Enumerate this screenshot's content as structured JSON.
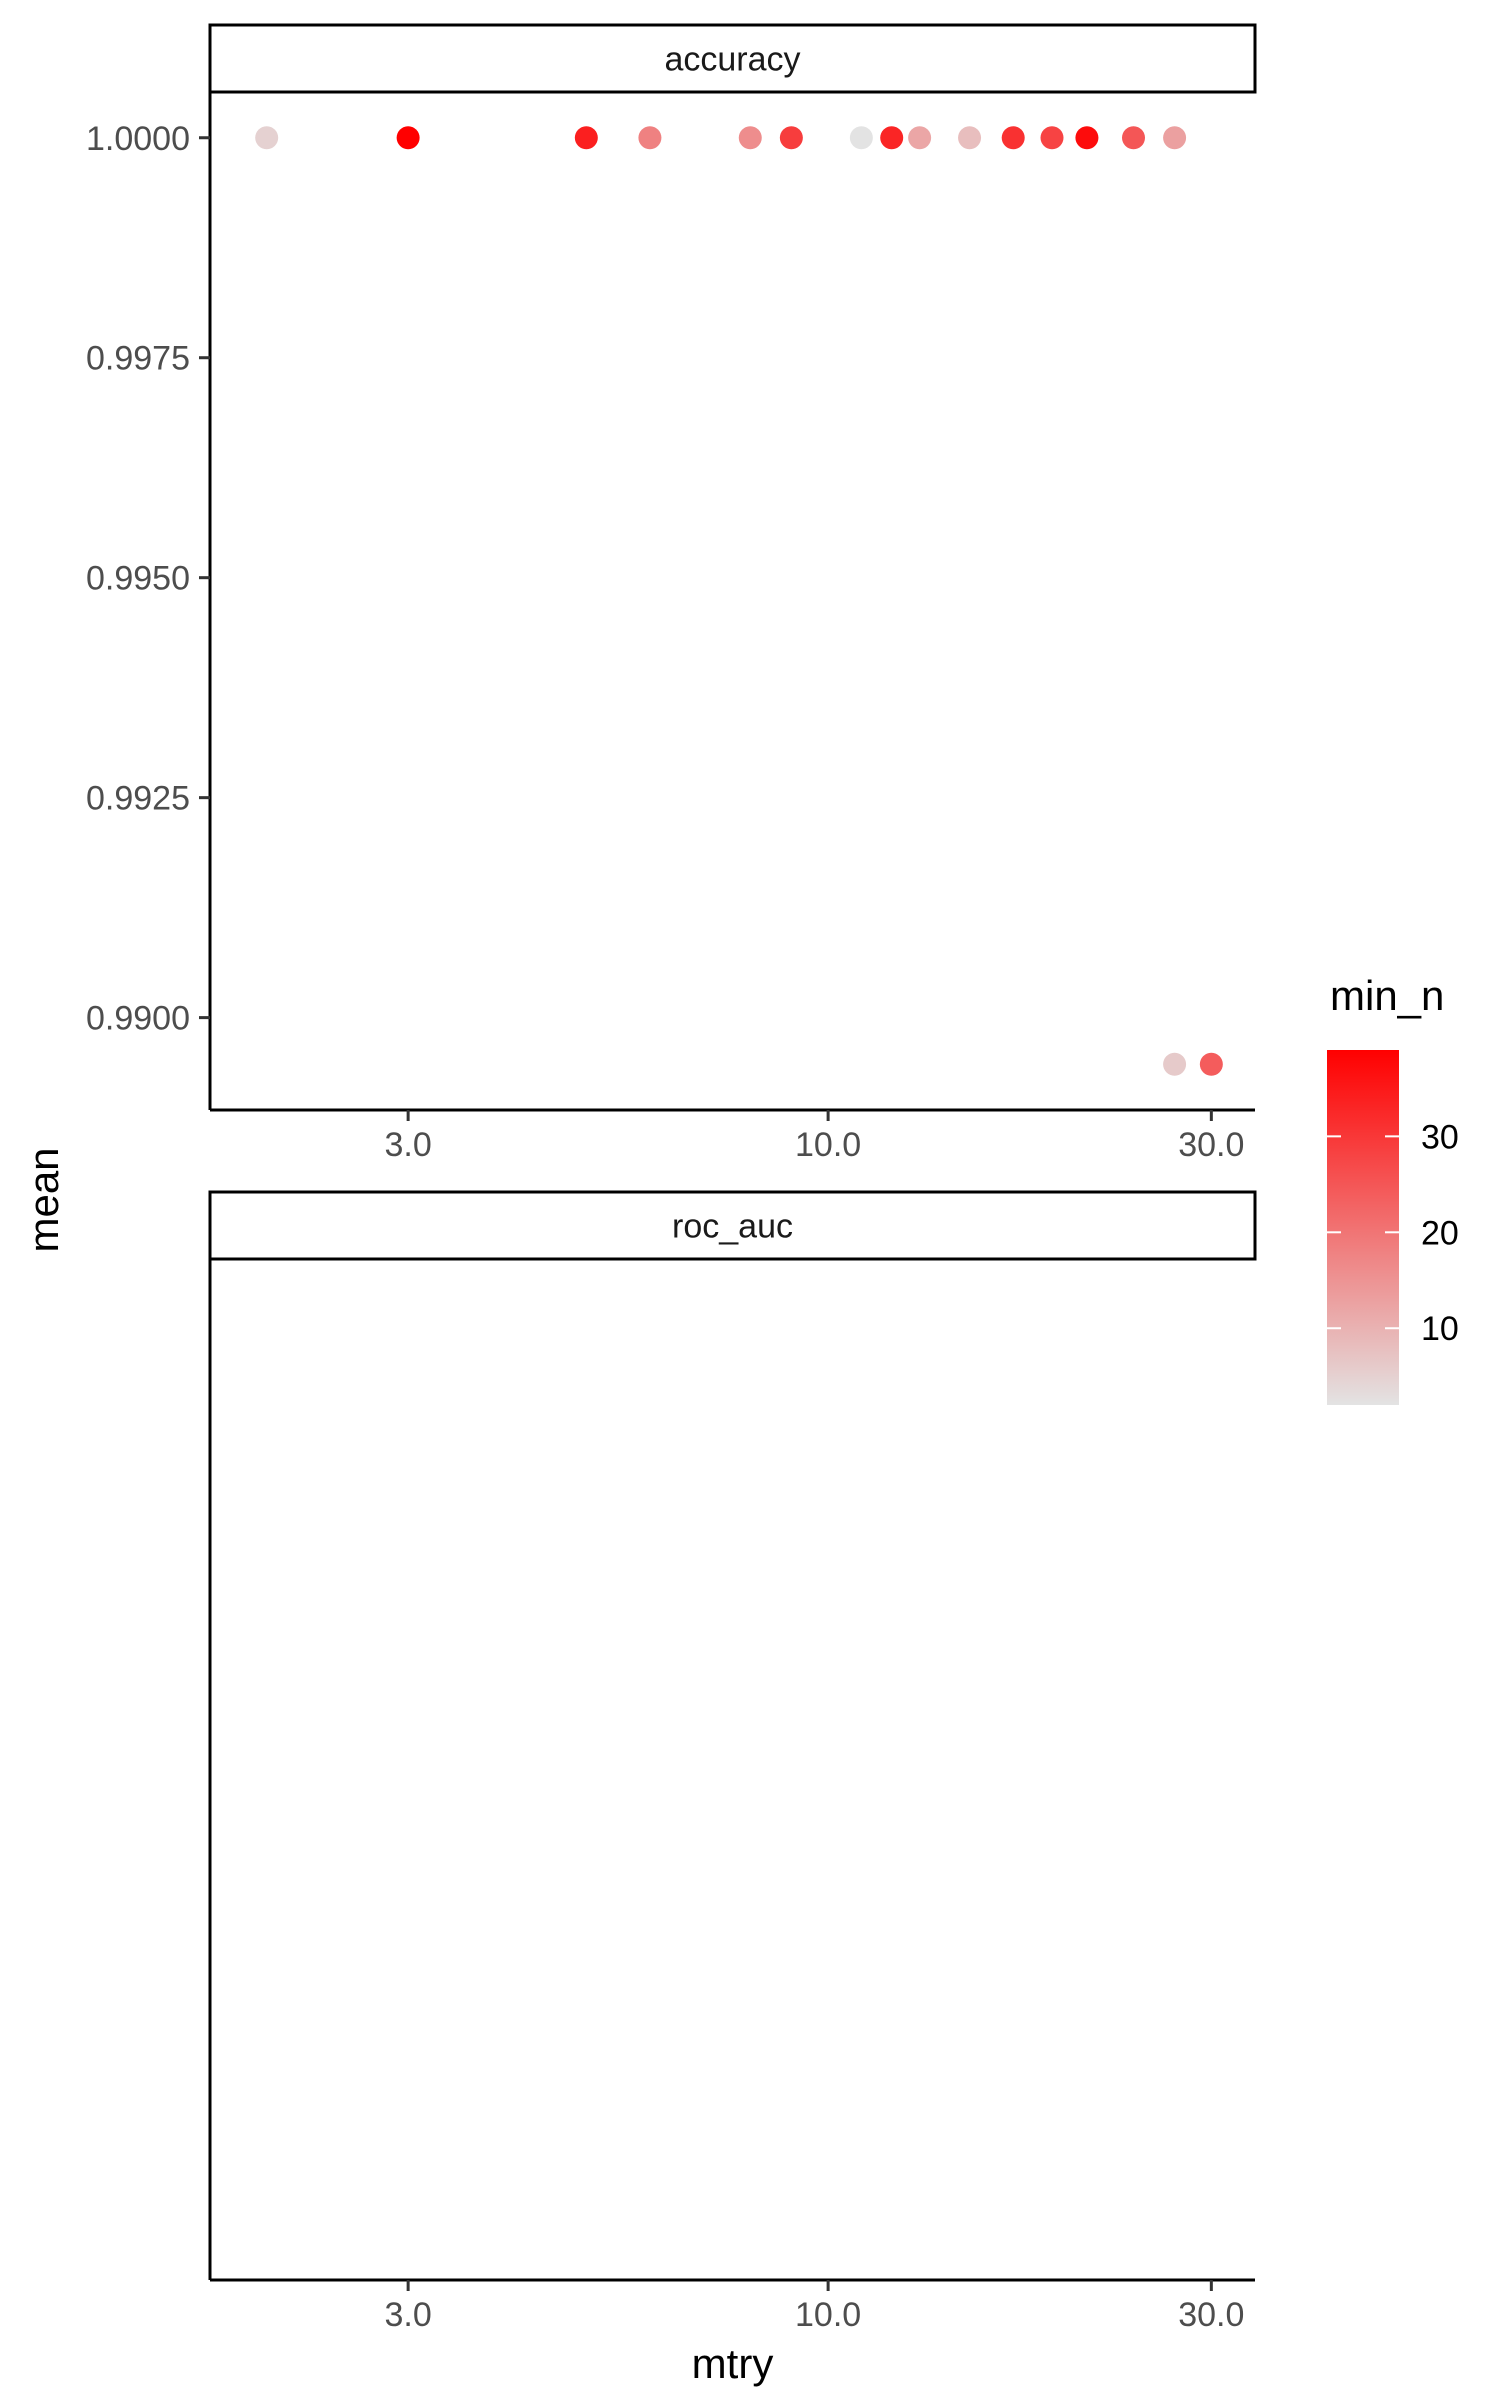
{
  "chart_data": {
    "type": "scatter",
    "xlabel": "mtry",
    "ylabel": "mean",
    "x_scale": "log10",
    "x_ticks": [
      3.0,
      10.0,
      30.0
    ],
    "x_tick_labels": [
      "3.0",
      "10.0",
      "30.0"
    ],
    "xlim": [
      1.7,
      34
    ],
    "grid": false,
    "legend": {
      "title": "min_n",
      "placement": "right",
      "type": "colorbar",
      "range": [
        2,
        39
      ],
      "ticks": [
        10,
        20,
        30
      ],
      "tick_labels": [
        "10",
        "20",
        "30"
      ],
      "colors": {
        "low": "#e3e3e3",
        "high": "#ff0000"
      }
    },
    "panels": [
      {
        "strip": "accuracy",
        "ylim": [
          0.98895,
          1.00052
        ],
        "y_ticks": [
          0.99,
          0.9925,
          0.995,
          0.9975,
          1.0
        ],
        "y_tick_labels": [
          "0.9900",
          "0.9925",
          "0.9950",
          "0.9975",
          "1.0000"
        ],
        "points": [
          {
            "mtry": 2.0,
            "mean": 1.0,
            "min_n": 5
          },
          {
            "mtry": 3.0,
            "mean": 1.0,
            "min_n": 39
          },
          {
            "mtry": 5.0,
            "mean": 1.0,
            "min_n": 34
          },
          {
            "mtry": 6.0,
            "mean": 1.0,
            "min_n": 18
          },
          {
            "mtry": 8.0,
            "mean": 1.0,
            "min_n": 16
          },
          {
            "mtry": 9.0,
            "mean": 1.0,
            "min_n": 29
          },
          {
            "mtry": 11.0,
            "mean": 1.0,
            "min_n": 2
          },
          {
            "mtry": 12.0,
            "mean": 1.0,
            "min_n": 33
          },
          {
            "mtry": 13.0,
            "mean": 1.0,
            "min_n": 12
          },
          {
            "mtry": 15.0,
            "mean": 1.0,
            "min_n": 8
          },
          {
            "mtry": 17.0,
            "mean": 1.0,
            "min_n": 31
          },
          {
            "mtry": 19.0,
            "mean": 1.0,
            "min_n": 28
          },
          {
            "mtry": 21.0,
            "mean": 1.0,
            "min_n": 37
          },
          {
            "mtry": 24.0,
            "mean": 1.0,
            "min_n": 25
          },
          {
            "mtry": 27.0,
            "mean": 1.0,
            "min_n": 13
          },
          {
            "mtry": 27.0,
            "mean": 0.98947,
            "min_n": 6
          },
          {
            "mtry": 30.0,
            "mean": 0.98947,
            "min_n": 24
          }
        ]
      },
      {
        "strip": "roc_auc",
        "y_ticks": [],
        "y_tick_labels": [],
        "points": []
      }
    ]
  }
}
